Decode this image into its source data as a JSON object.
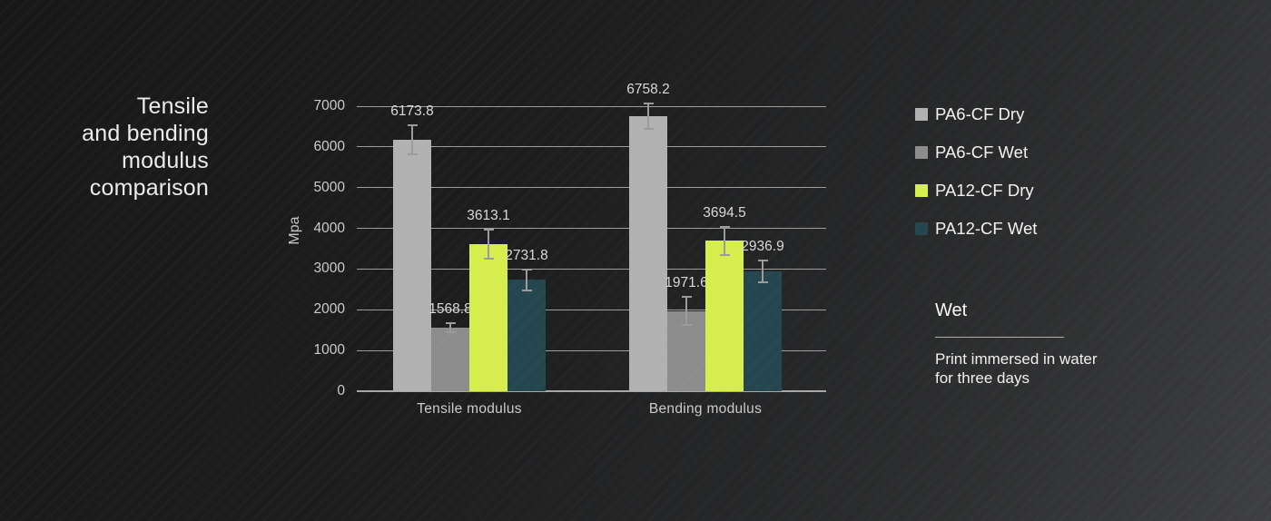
{
  "slide": {
    "title": "Tensile\nand bending\nmodulus\ncomparison",
    "background_dark": "#181818",
    "background_light": "#3e3f41"
  },
  "chart_data": {
    "type": "bar",
    "title": "Tensile and bending modulus comparison",
    "xlabel": "",
    "ylabel": "Mpa",
    "ylim": [
      0,
      7000
    ],
    "ytick_step": 1000,
    "grid": true,
    "legend_position": "right",
    "value_labels": true,
    "error_bars": true,
    "categories": [
      "Tensile modulus",
      "Bending modulus"
    ],
    "series": [
      {
        "name": "PA6-CF Dry",
        "color": "#b1b1b1",
        "values": [
          6173.8,
          6758.2
        ],
        "errors": [
          350,
          310
        ]
      },
      {
        "name": "PA6-CF Wet",
        "color": "#8c8c8c",
        "values": [
          1568.8,
          1971.6
        ],
        "errors": [
          110,
          350
        ]
      },
      {
        "name": "PA12-CF Dry",
        "color": "#d6ee4d",
        "values": [
          3613.1,
          3694.5
        ],
        "errors": [
          350,
          350
        ]
      },
      {
        "name": "PA12-CF Wet",
        "color": "#25464f",
        "values": [
          2731.8,
          2936.9
        ],
        "errors": [
          260,
          270
        ]
      }
    ],
    "grid_color": "#9c9c9c",
    "error_bar_color": "#9b9b9b",
    "label_color": "#d8d8d8"
  },
  "note": {
    "heading": "Wet",
    "text": "Print immersed in water\nfor three days"
  }
}
